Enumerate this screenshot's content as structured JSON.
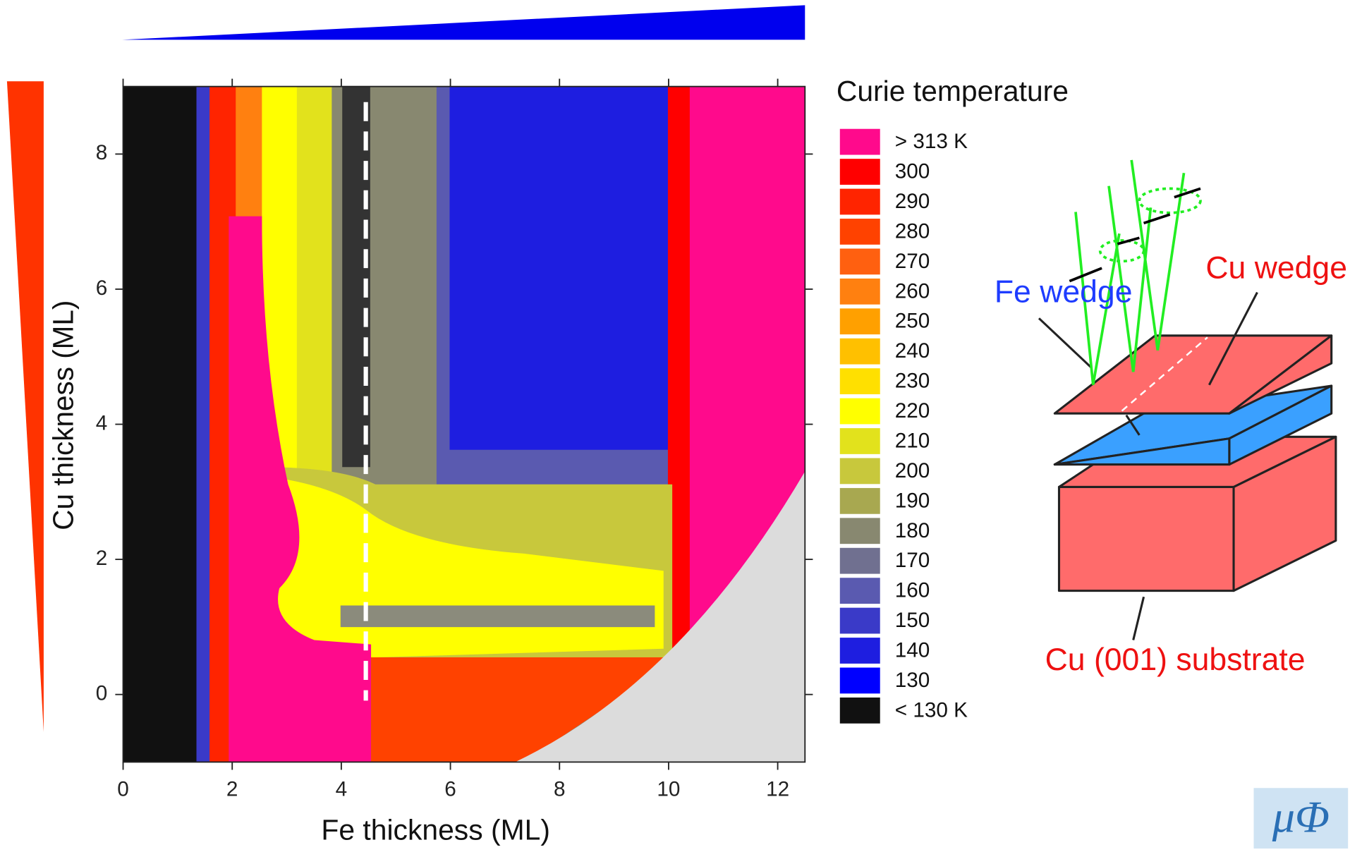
{
  "chart_data": {
    "type": "heatmap",
    "x_label": "Fe thickness (ML)",
    "y_label": "Cu thickness (ML)",
    "xlim": [
      0,
      12.5
    ],
    "ylim": [
      -1,
      9
    ],
    "xticks": [
      0,
      2,
      4,
      6,
      8,
      10,
      12
    ],
    "yticks": [
      0,
      2,
      4,
      6,
      8
    ],
    "colorbar_title": "Curie temperature",
    "colorbar_labels": [
      "> 313 K",
      300,
      290,
      280,
      270,
      260,
      250,
      240,
      230,
      220,
      210,
      200,
      190,
      180,
      170,
      160,
      150,
      140,
      130,
      "< 130 K"
    ],
    "colorbar_colors": [
      "#ff0a8c",
      "#ff0000",
      "#ff2400",
      "#ff4200",
      "#ff6010",
      "#ff8010",
      "#ffa000",
      "#ffc000",
      "#ffe000",
      "#ffff00",
      "#e2e21c",
      "#c8c83c",
      "#a8a850",
      "#888870",
      "#707090",
      "#5a5ab0",
      "#3a3ac8",
      "#1e1ee0",
      "#0000ff",
      "#111111"
    ],
    "annotations": [
      "Fe wedge",
      "Cu wedge",
      "Cu (001) substrate",
      "μΦ"
    ]
  }
}
